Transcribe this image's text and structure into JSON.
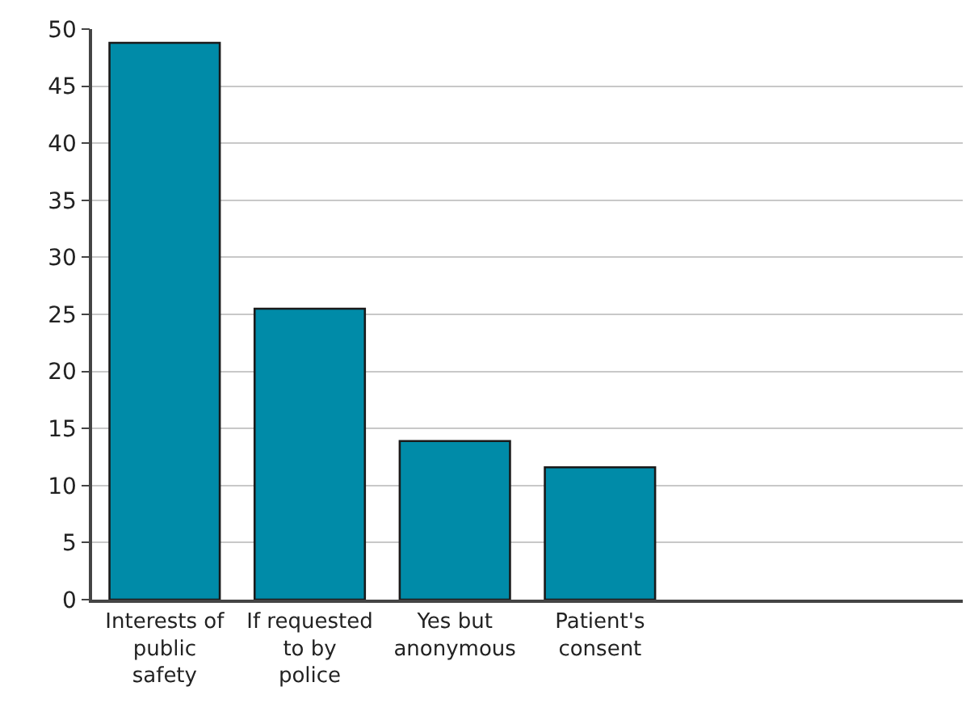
{
  "chart_data": {
    "type": "bar",
    "categories": [
      "Interests of\npublic\nsafety",
      "If requested\nto by\npolice",
      "Yes but\nanonymous",
      "Patient's\nconsent",
      null,
      null
    ],
    "values": [
      48.8,
      25.5,
      13.9,
      11.6,
      null,
      null
    ],
    "color": "#008ba8",
    "ylim": [
      0,
      50
    ],
    "yticks": [
      0,
      5,
      10,
      15,
      20,
      25,
      30,
      35,
      40,
      45,
      50
    ],
    "grid": "y"
  }
}
